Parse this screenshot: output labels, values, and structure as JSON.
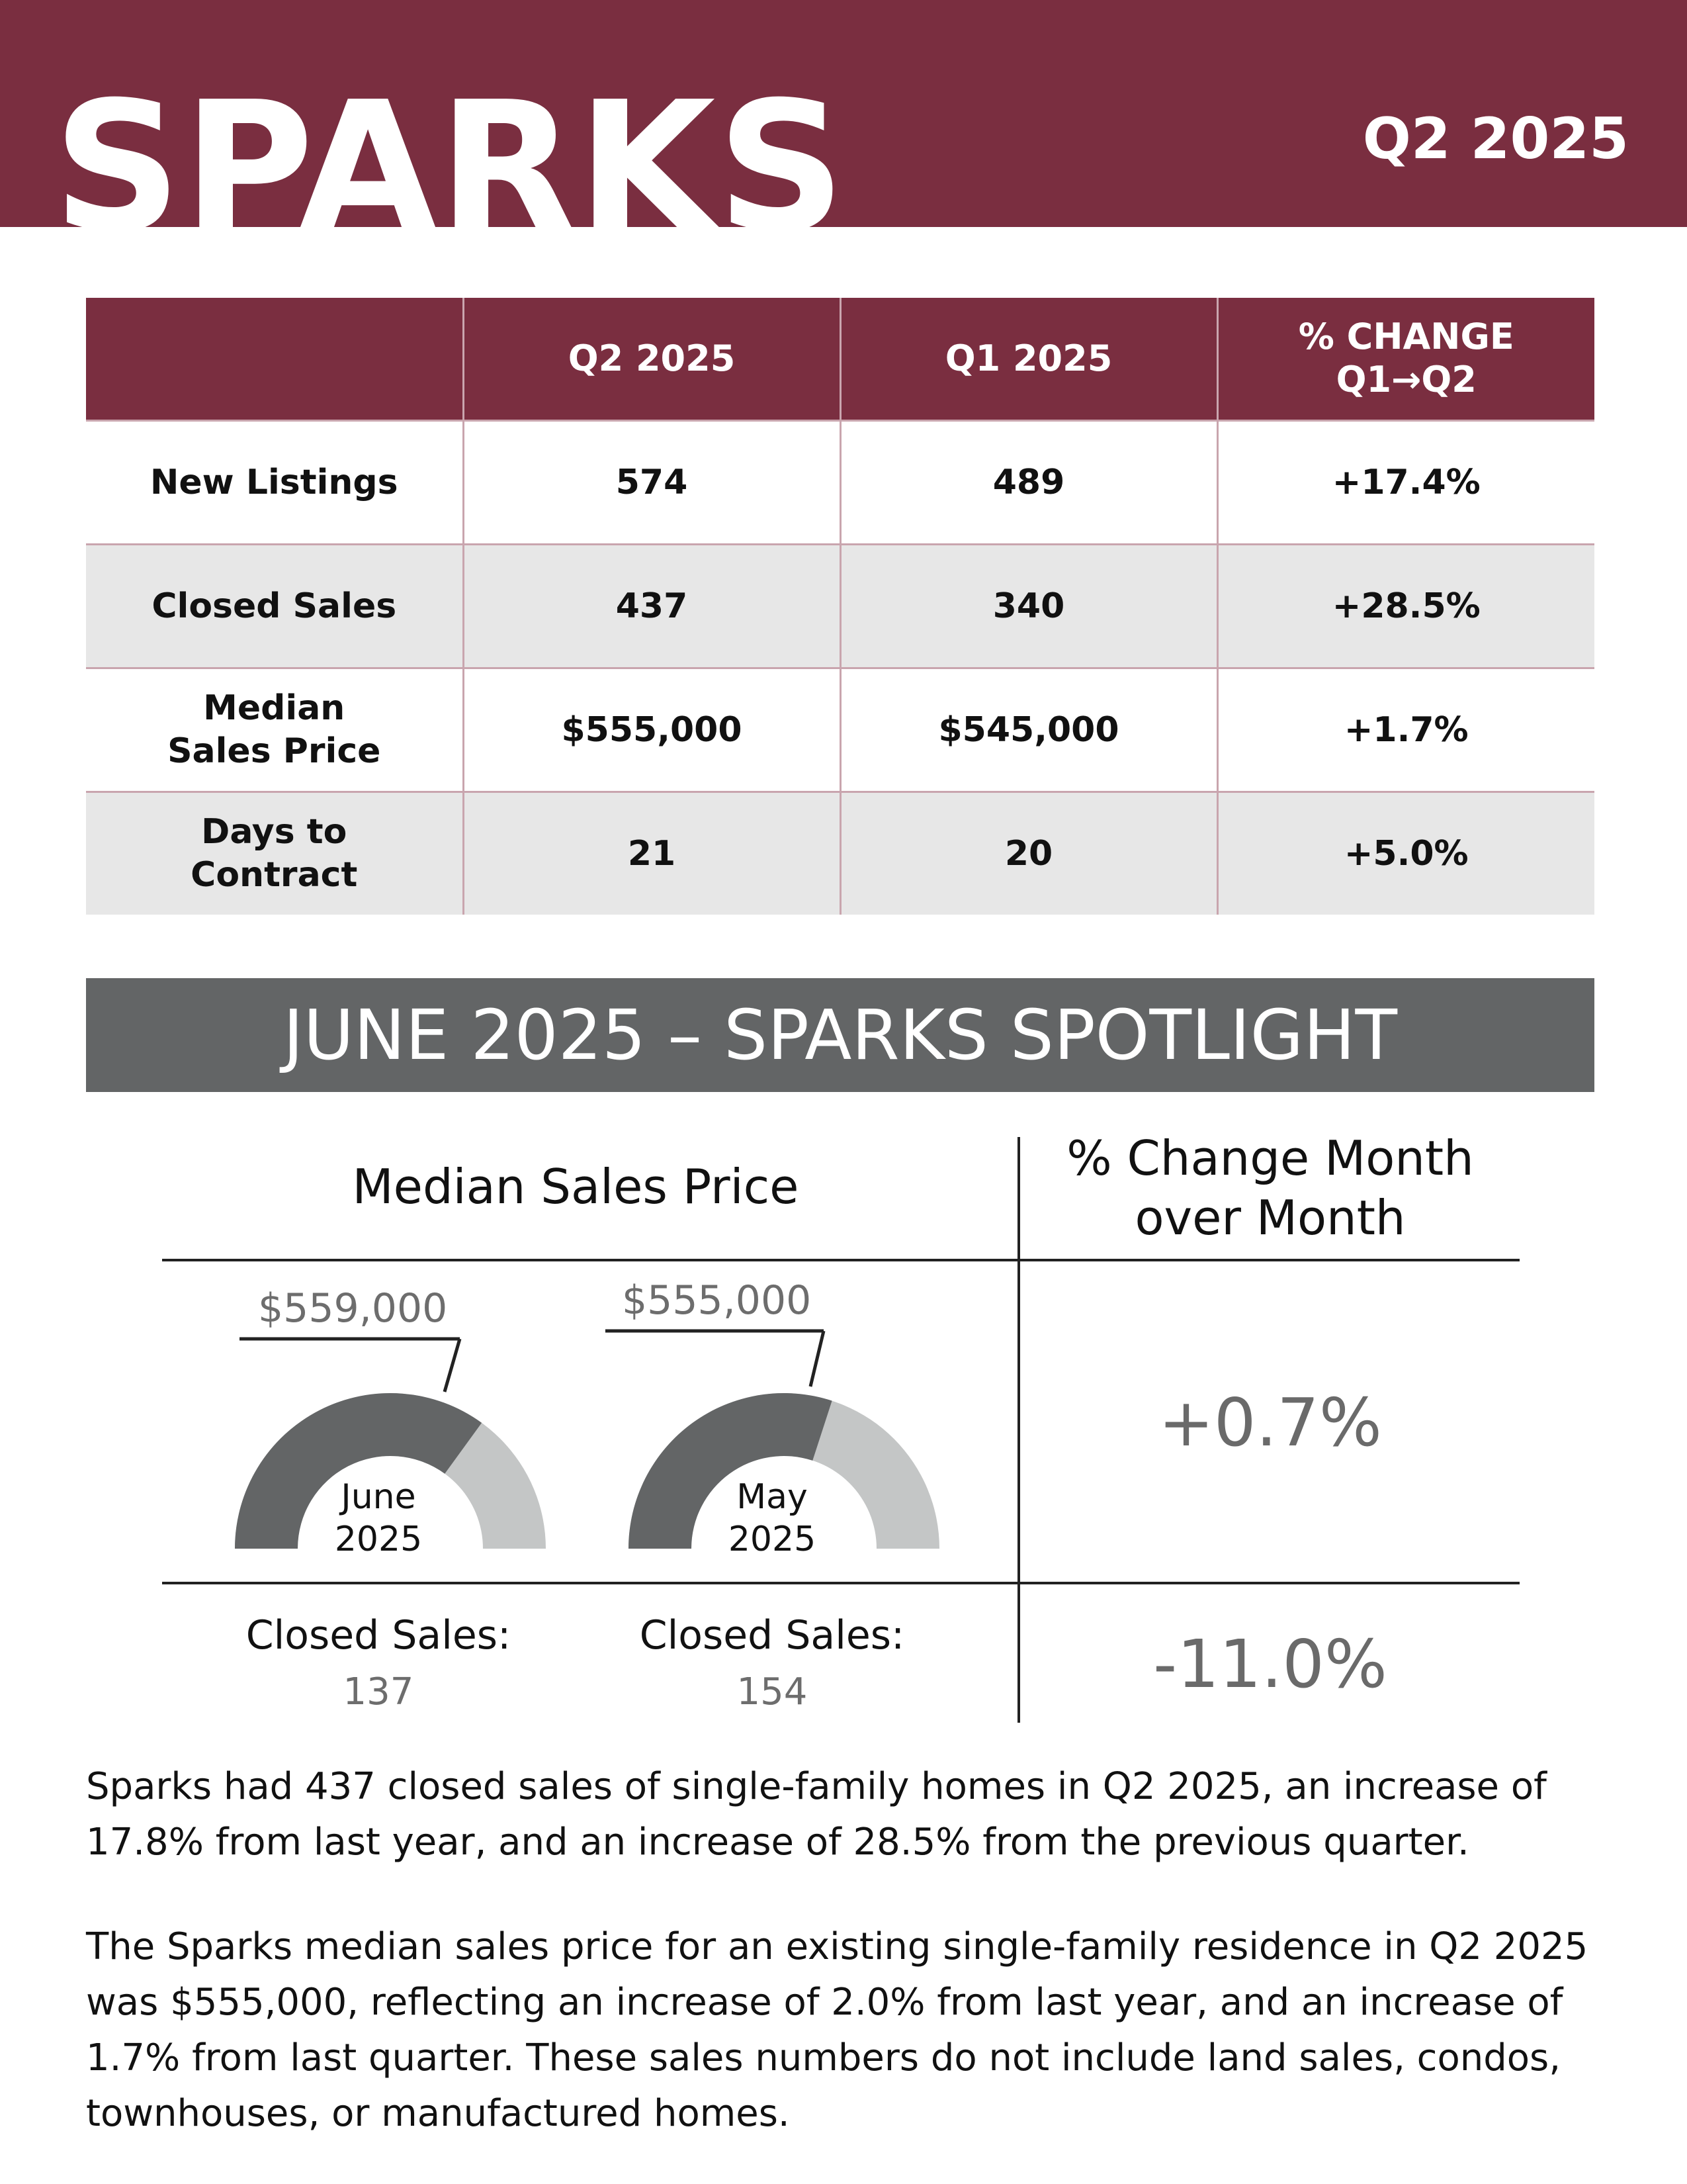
{
  "header": {
    "city": "SPARKS",
    "quarter": "Q2 2025"
  },
  "stats_table": {
    "columns": [
      "",
      "Q2 2025",
      "Q1 2025",
      "% CHANGE\nQ1→Q2"
    ],
    "rows": [
      {
        "label": "New Listings",
        "q2": "574",
        "q1": "489",
        "change": "+17.4%"
      },
      {
        "label": "Closed Sales",
        "q2": "437",
        "q1": "340",
        "change": "+28.5%"
      },
      {
        "label": "Median Sales Price",
        "q2": "$555,000",
        "q1": "$545,000",
        "change": "+1.7%"
      },
      {
        "label": "Days to Contract",
        "q2": "21",
        "q1": "20",
        "change": "+5.0%"
      }
    ]
  },
  "spotlight": {
    "title": "JUNE 2025 – SPARKS SPOTLIGHT",
    "median_title": "Median Sales Price",
    "change_title": "% Change Month over Month",
    "gauges": [
      {
        "month": "June",
        "year": "2025",
        "price": "$559,000",
        "fill_fraction": 0.7,
        "closed_label": "Closed Sales:",
        "closed_value": "137"
      },
      {
        "month": "May",
        "year": "2025",
        "price": "$555,000",
        "fill_fraction": 0.6,
        "closed_label": "Closed Sales:",
        "closed_value": "154"
      }
    ],
    "price_change": "+0.7%",
    "sales_change": "-11.0%"
  },
  "summary": {
    "paragraph1": "Sparks had 437 closed sales of single-family homes in Q2 2025, an increase of 17.8% from last year, and an increase of 28.5% from the previous quarter.",
    "paragraph2": "The Sparks median sales price for an existing single-family residence in Q2 2025 was $555,000, reflecting an increase of 2.0% from last year, and an increase of 1.7% from last quarter. These sales numbers do not include land sales, condos, townhouses, or manufactured homes."
  },
  "colors": {
    "brand": "#7a2e40",
    "gauge_dark": "#636566",
    "gauge_light": "#c4c6c6",
    "spotlight_bar": "#636566"
  }
}
